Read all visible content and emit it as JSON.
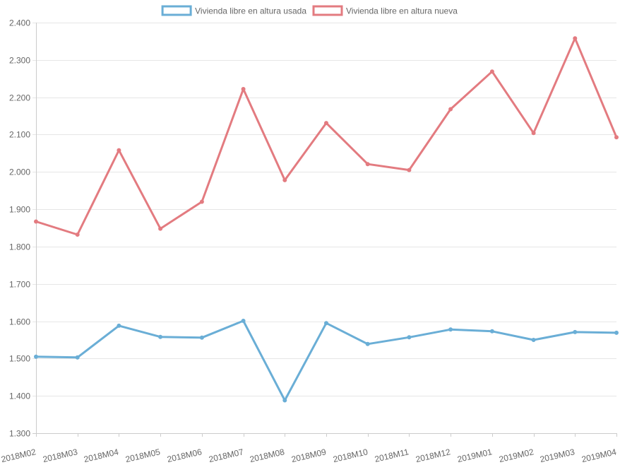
{
  "chart_data": {
    "type": "line",
    "title": "",
    "xlabel": "",
    "ylabel": "",
    "categories": [
      "2018M02",
      "2018M03",
      "2018M04",
      "2018M05",
      "2018M06",
      "2018M07",
      "2018M08",
      "2018M09",
      "2018M10",
      "2018M11",
      "2018M12",
      "2019M01",
      "2019M02",
      "2019M03",
      "2019M04"
    ],
    "ylim": [
      1.3,
      2.4
    ],
    "yticks": [
      1.3,
      1.4,
      1.5,
      1.6,
      1.7,
      1.8,
      1.9,
      2.0,
      2.1,
      2.2,
      2.3,
      2.4
    ],
    "ytick_labels": [
      "1.300",
      "1.400",
      "1.500",
      "1.600",
      "1.700",
      "1.800",
      "1.900",
      "2.000",
      "2.100",
      "2.200",
      "2.300",
      "2.400"
    ],
    "grid": true,
    "legend_position": "top-center",
    "series": [
      {
        "name": "Vivienda libre en altura usada",
        "color": "#6aaed6",
        "values": [
          1.505,
          1.503,
          1.588,
          1.558,
          1.556,
          1.601,
          1.388,
          1.595,
          1.539,
          1.557,
          1.578,
          1.573,
          1.55,
          1.571,
          1.569
        ]
      },
      {
        "name": "Vivienda libre en altura nueva",
        "color": "#e37b80",
        "values": [
          1.867,
          1.832,
          2.058,
          1.848,
          1.92,
          2.222,
          1.978,
          2.131,
          2.021,
          2.005,
          2.168,
          2.269,
          2.104,
          2.358,
          2.093
        ]
      }
    ]
  }
}
